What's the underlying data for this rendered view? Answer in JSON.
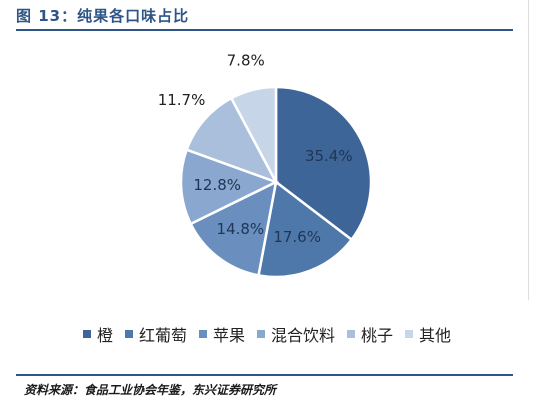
{
  "figure": {
    "title": "图 13：纯果各口味占比",
    "source": "资料来源：食品工业协会年鉴，东兴证券研究所"
  },
  "chart_data": {
    "type": "pie",
    "title": "图 13：纯果各口味占比",
    "unit": "%",
    "legend_position": "bottom",
    "slices": [
      {
        "label": "橙",
        "value": 35.4,
        "display": "35.4%",
        "color": "#3e6597"
      },
      {
        "label": "红葡萄",
        "value": 17.6,
        "display": "17.6%",
        "color": "#4f78aa"
      },
      {
        "label": "苹果",
        "value": 14.8,
        "display": "14.8%",
        "color": "#6a8fbf"
      },
      {
        "label": "混合饮料",
        "value": 12.8,
        "display": "12.8%",
        "color": "#8aa7cf"
      },
      {
        "label": "桃子",
        "value": 11.7,
        "display": "11.7%",
        "color": "#a9bfdb"
      },
      {
        "label": "其他",
        "value": 7.8,
        "display": "7.8%",
        "color": "#c6d5e8"
      }
    ]
  }
}
